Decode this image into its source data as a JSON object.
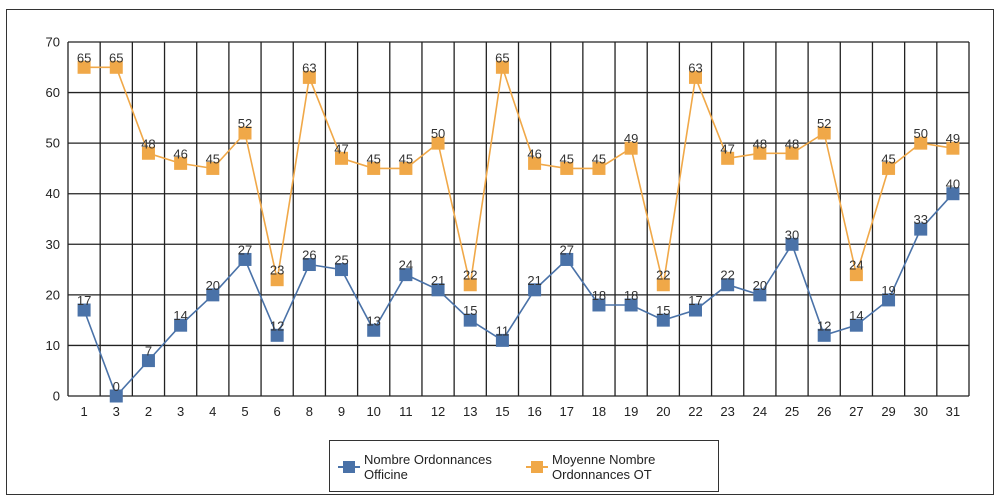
{
  "chart_data": {
    "type": "line",
    "title": "",
    "xlabel": "",
    "ylabel": "",
    "categories": [
      "1",
      "3",
      "2",
      "3",
      "4",
      "5",
      "6",
      "8",
      "9",
      "10",
      "11",
      "12",
      "13",
      "15",
      "16",
      "17",
      "18",
      "19",
      "20",
      "22",
      "23",
      "24",
      "25",
      "26",
      "27",
      "29",
      "30",
      "31"
    ],
    "ylim": [
      0,
      70
    ],
    "yticks": [
      0,
      10,
      20,
      30,
      40,
      50,
      60,
      70
    ],
    "grid": true,
    "legend_position": "bottom",
    "series": [
      {
        "name": "Nombre Ordonnances Officine",
        "color": "#4a72a8",
        "values": [
          17,
          0,
          7,
          14,
          20,
          27,
          12,
          26,
          25,
          13,
          24,
          21,
          15,
          11,
          21,
          27,
          18,
          18,
          15,
          17,
          22,
          20,
          30,
          12,
          14,
          19,
          33,
          40
        ]
      },
      {
        "name": "Moyenne Nombre Ordonnances OT",
        "color": "#f0a848",
        "values": [
          65,
          65,
          48,
          46,
          45,
          52,
          23,
          63,
          47,
          45,
          45,
          50,
          22,
          65,
          46,
          45,
          45,
          49,
          22,
          63,
          47,
          48,
          48,
          52,
          24,
          45,
          50,
          49
        ]
      }
    ]
  },
  "legend": {
    "items": [
      {
        "line1": "Nombre Ordonnances",
        "line2": "Officine"
      },
      {
        "line1": "Moyenne Nombre",
        "line2": "Ordonnances OT"
      }
    ]
  }
}
